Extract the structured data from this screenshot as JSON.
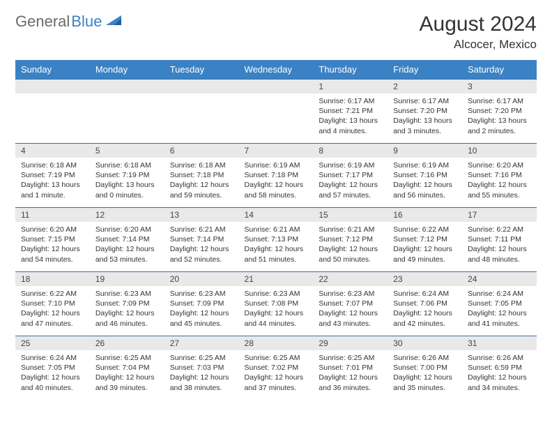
{
  "logo": {
    "part1": "General",
    "part2": "Blue"
  },
  "title": "August 2024",
  "location": "Alcocer, Mexico",
  "weekdays": [
    "Sunday",
    "Monday",
    "Tuesday",
    "Wednesday",
    "Thursday",
    "Friday",
    "Saturday"
  ],
  "colors": {
    "header_bg": "#3b82c4",
    "header_text": "#ffffff",
    "daynum_bg": "#e9e9e9",
    "border": "#3b6fa0",
    "logo_gray": "#6a6a6a",
    "logo_blue": "#3b82c4"
  },
  "typography": {
    "title_fontsize": 30,
    "location_fontsize": 17,
    "weekday_fontsize": 13,
    "daynum_fontsize": 12,
    "cell_fontsize": 10.5
  },
  "grid": {
    "rows": 5,
    "cols": 7,
    "first_day_col": 4
  },
  "days": [
    {
      "n": 1,
      "sunrise": "6:17 AM",
      "sunset": "7:21 PM",
      "daylight": "13 hours and 4 minutes."
    },
    {
      "n": 2,
      "sunrise": "6:17 AM",
      "sunset": "7:20 PM",
      "daylight": "13 hours and 3 minutes."
    },
    {
      "n": 3,
      "sunrise": "6:17 AM",
      "sunset": "7:20 PM",
      "daylight": "13 hours and 2 minutes."
    },
    {
      "n": 4,
      "sunrise": "6:18 AM",
      "sunset": "7:19 PM",
      "daylight": "13 hours and 1 minute."
    },
    {
      "n": 5,
      "sunrise": "6:18 AM",
      "sunset": "7:19 PM",
      "daylight": "13 hours and 0 minutes."
    },
    {
      "n": 6,
      "sunrise": "6:18 AM",
      "sunset": "7:18 PM",
      "daylight": "12 hours and 59 minutes."
    },
    {
      "n": 7,
      "sunrise": "6:19 AM",
      "sunset": "7:18 PM",
      "daylight": "12 hours and 58 minutes."
    },
    {
      "n": 8,
      "sunrise": "6:19 AM",
      "sunset": "7:17 PM",
      "daylight": "12 hours and 57 minutes."
    },
    {
      "n": 9,
      "sunrise": "6:19 AM",
      "sunset": "7:16 PM",
      "daylight": "12 hours and 56 minutes."
    },
    {
      "n": 10,
      "sunrise": "6:20 AM",
      "sunset": "7:16 PM",
      "daylight": "12 hours and 55 minutes."
    },
    {
      "n": 11,
      "sunrise": "6:20 AM",
      "sunset": "7:15 PM",
      "daylight": "12 hours and 54 minutes."
    },
    {
      "n": 12,
      "sunrise": "6:20 AM",
      "sunset": "7:14 PM",
      "daylight": "12 hours and 53 minutes."
    },
    {
      "n": 13,
      "sunrise": "6:21 AM",
      "sunset": "7:14 PM",
      "daylight": "12 hours and 52 minutes."
    },
    {
      "n": 14,
      "sunrise": "6:21 AM",
      "sunset": "7:13 PM",
      "daylight": "12 hours and 51 minutes."
    },
    {
      "n": 15,
      "sunrise": "6:21 AM",
      "sunset": "7:12 PM",
      "daylight": "12 hours and 50 minutes."
    },
    {
      "n": 16,
      "sunrise": "6:22 AM",
      "sunset": "7:12 PM",
      "daylight": "12 hours and 49 minutes."
    },
    {
      "n": 17,
      "sunrise": "6:22 AM",
      "sunset": "7:11 PM",
      "daylight": "12 hours and 48 minutes."
    },
    {
      "n": 18,
      "sunrise": "6:22 AM",
      "sunset": "7:10 PM",
      "daylight": "12 hours and 47 minutes."
    },
    {
      "n": 19,
      "sunrise": "6:23 AM",
      "sunset": "7:09 PM",
      "daylight": "12 hours and 46 minutes."
    },
    {
      "n": 20,
      "sunrise": "6:23 AM",
      "sunset": "7:09 PM",
      "daylight": "12 hours and 45 minutes."
    },
    {
      "n": 21,
      "sunrise": "6:23 AM",
      "sunset": "7:08 PM",
      "daylight": "12 hours and 44 minutes."
    },
    {
      "n": 22,
      "sunrise": "6:23 AM",
      "sunset": "7:07 PM",
      "daylight": "12 hours and 43 minutes."
    },
    {
      "n": 23,
      "sunrise": "6:24 AM",
      "sunset": "7:06 PM",
      "daylight": "12 hours and 42 minutes."
    },
    {
      "n": 24,
      "sunrise": "6:24 AM",
      "sunset": "7:05 PM",
      "daylight": "12 hours and 41 minutes."
    },
    {
      "n": 25,
      "sunrise": "6:24 AM",
      "sunset": "7:05 PM",
      "daylight": "12 hours and 40 minutes."
    },
    {
      "n": 26,
      "sunrise": "6:25 AM",
      "sunset": "7:04 PM",
      "daylight": "12 hours and 39 minutes."
    },
    {
      "n": 27,
      "sunrise": "6:25 AM",
      "sunset": "7:03 PM",
      "daylight": "12 hours and 38 minutes."
    },
    {
      "n": 28,
      "sunrise": "6:25 AM",
      "sunset": "7:02 PM",
      "daylight": "12 hours and 37 minutes."
    },
    {
      "n": 29,
      "sunrise": "6:25 AM",
      "sunset": "7:01 PM",
      "daylight": "12 hours and 36 minutes."
    },
    {
      "n": 30,
      "sunrise": "6:26 AM",
      "sunset": "7:00 PM",
      "daylight": "12 hours and 35 minutes."
    },
    {
      "n": 31,
      "sunrise": "6:26 AM",
      "sunset": "6:59 PM",
      "daylight": "12 hours and 34 minutes."
    }
  ],
  "labels": {
    "sunrise": "Sunrise:",
    "sunset": "Sunset:",
    "daylight": "Daylight:"
  }
}
